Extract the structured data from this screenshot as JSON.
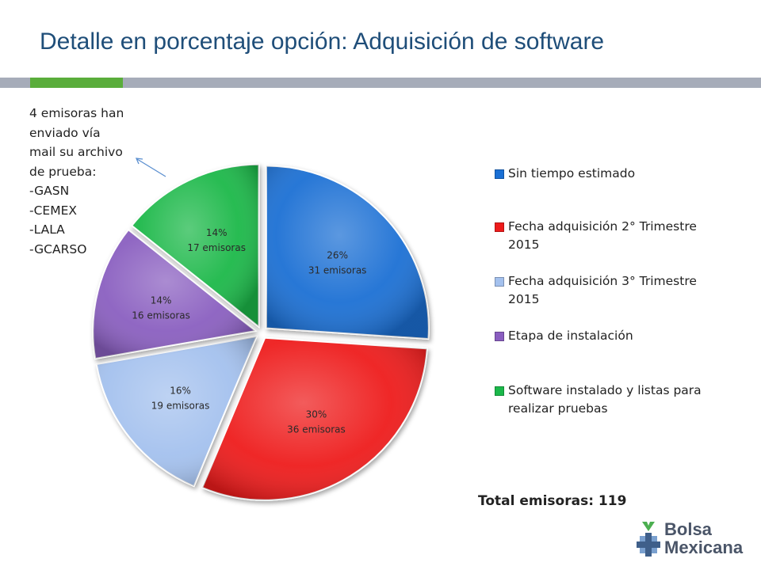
{
  "title": "Detalle en porcentaje opción: Adquisición de software",
  "note": {
    "lines": [
      "4 emisoras han",
      "enviado vía",
      "mail su archivo",
      "de prueba:",
      "-GASN",
      "-CEMEX",
      "-LALA",
      "-GCARSO"
    ]
  },
  "total_label": "Total emisoras: 119",
  "logo": {
    "line1": "Bolsa",
    "line2": "Mexicana",
    "icon": "bolsa-mexicana-logo-icon"
  },
  "colors": {
    "title": "#1f4e79",
    "header_bar": "#a6acb9",
    "header_accent": "#5aad3b"
  },
  "chart_data": {
    "type": "pie",
    "title": "",
    "legend_position": "right",
    "slices": [
      {
        "name": "Sin tiempo estimado",
        "value": 31,
        "percent_label": "26%",
        "count_label": "31 emisoras",
        "color": "#1a6fd4"
      },
      {
        "name": "Fecha adquisición 2° Trimestre 2015",
        "value": 36,
        "percent_label": "30%",
        "count_label": "36 emisoras",
        "color": "#ee1b1b"
      },
      {
        "name": "Fecha adquisición 3° Trimestre 2015",
        "value": 19,
        "percent_label": "16%",
        "count_label": "19 emisoras",
        "color": "#a4c1ee"
      },
      {
        "name": "Etapa de instalación",
        "value": 16,
        "percent_label": "14%",
        "count_label": "16 emisoras",
        "color": "#8a5ec0"
      },
      {
        "name": "Software instalado y listas para realizar pruebas",
        "value": 17,
        "percent_label": "14%",
        "count_label": "17 emisoras",
        "color": "#1bb84a"
      }
    ]
  }
}
